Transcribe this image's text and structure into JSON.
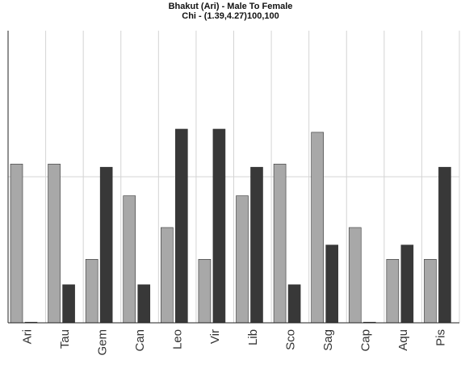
{
  "chart_data": {
    "type": "bar",
    "title": "Bhakut (Ari) - Male To Female",
    "subtitle": "Chi - (1.39,4.27)100,100",
    "categories": [
      "Ari",
      "Tau",
      "Gem",
      "Can",
      "Leo",
      "Vir",
      "Lib",
      "Sco",
      "Sag",
      "Cap",
      "Aqu",
      "Pis"
    ],
    "series": [
      {
        "values": [
          5.0,
          5.0,
          2.0,
          4.0,
          3.0,
          2.0,
          4.0,
          5.0,
          6.0,
          3.0,
          2.0,
          2.0
        ]
      },
      {
        "values": [
          0.0,
          1.2,
          4.9,
          1.2,
          6.1,
          6.1,
          4.9,
          1.2,
          2.45,
          0.0,
          2.45,
          4.9
        ]
      }
    ],
    "ylim": [
      0,
      9.2
    ],
    "grid": {
      "vertical": true,
      "horizontal_at": [
        4.6
      ]
    },
    "colors": {
      "series_a": "#a8a8a8",
      "series_b": "#383838",
      "grid": "#d4d4d4",
      "axis": "#222222"
    }
  }
}
